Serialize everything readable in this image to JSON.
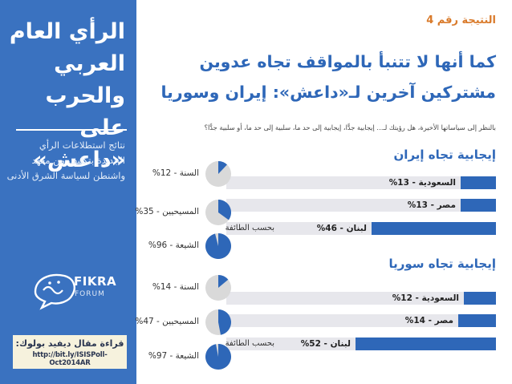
{
  "sidebar": {
    "title_lines": [
      "الرأي العام",
      "العربي والحرب",
      "على «داعش»"
    ],
    "description_lines": [
      "نتائج استطلاعات الرأي",
      "الجديدة بتكليف من معهد",
      "واشنطن لسياسة الشرق الأدنى"
    ],
    "logo_word": "FIKRA",
    "logo_sub": "FORUM",
    "read_label": "قراءة مقال ديفيد بولوك:",
    "read_link": "http://bit.ly/ISISPoll-Oct2014AR"
  },
  "result_label": "النتيجة رقم 4",
  "headline_lines": [
    "كما أنها لا تتنبأ بالمواقف تجاه عدوين",
    "مشتركين آخرين لـ«داعش»: إيران وسوريا"
  ],
  "question": "بالنظر إلى سياساتها الأخيرة، هل رؤيتك لـ... إيجابية جدًّا، إيجابية إلى حد ما، سلبية إلى حد ما، أو سلبية جدًّا؟",
  "colors": {
    "accent": "#2e67b8",
    "light_accent": "#5b9bd5",
    "track": "#e7e7ec",
    "pie_bg": "#d9d9d9",
    "highlight": "#d97a2a"
  },
  "chart_data": [
    {
      "type": "bar",
      "title": "إيجابية تجاه إيران",
      "categories": [
        "السعودية",
        "مصر",
        "لبنان"
      ],
      "series": [
        {
          "values": [
            13,
            13,
            46
          ]
        }
      ],
      "value_labels": [
        "السعودية - 13%",
        "مصر - 13%",
        "لبنان - 46%"
      ],
      "xlim": [
        0,
        100
      ],
      "breakdown_note": "بحسب الطائفة",
      "breakdown": {
        "type": "pie",
        "categories": [
          "السنة",
          "المسيحيين",
          "الشيعة"
        ],
        "values": [
          12,
          35,
          96
        ],
        "value_labels": [
          "السنة - 12%",
          "المسيحيين - 35%",
          "الشيعة - 96%"
        ]
      }
    },
    {
      "type": "bar",
      "title": "إيجابية تجاه سوريا",
      "categories": [
        "السعودية",
        "مصر",
        "لبنان"
      ],
      "series": [
        {
          "values": [
            12,
            14,
            52
          ]
        }
      ],
      "value_labels": [
        "السعودية - 12%",
        "مصر - 14%",
        "لبنان - 52%"
      ],
      "xlim": [
        0,
        100
      ],
      "breakdown_note": "بحسب الطائفة",
      "breakdown": {
        "type": "pie",
        "categories": [
          "السنة",
          "المسيحيين",
          "الشيعة"
        ],
        "values": [
          14,
          47,
          97
        ],
        "value_labels": [
          "السنة - 14%",
          "المسيحيين - 47%",
          "الشيعة - 97%"
        ]
      }
    }
  ]
}
